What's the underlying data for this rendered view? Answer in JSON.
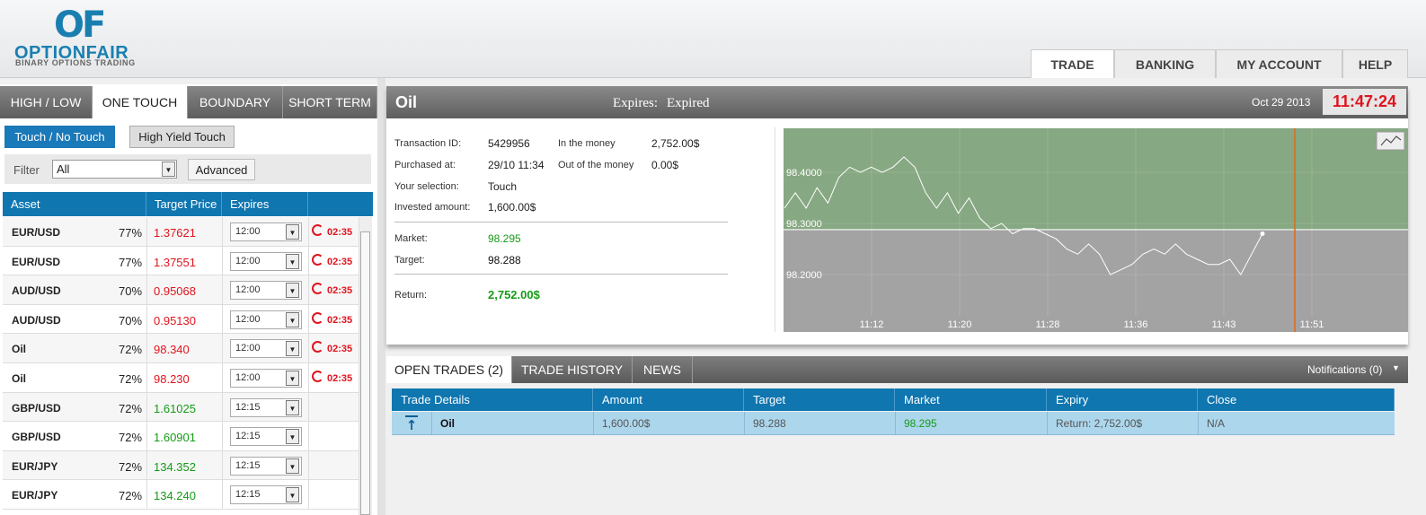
{
  "logo": {
    "mark": "OF",
    "name": "OPTIONFAIR",
    "tagline": "BINARY OPTIONS TRADING"
  },
  "nav": [
    "TRADE",
    "BANKING",
    "MY ACCOUNT",
    "HELP"
  ],
  "option_tabs": [
    "HIGH / LOW",
    "ONE TOUCH",
    "BOUNDARY",
    "SHORT TERM"
  ],
  "sub_tabs": [
    "Touch / No Touch",
    "High Yield Touch"
  ],
  "filter": {
    "label": "Filter",
    "value": "All",
    "button": "Advanced"
  },
  "asset_table": {
    "columns": [
      "Asset",
      "Target Price",
      "Expires"
    ],
    "rows": [
      {
        "asset": "EUR/USD",
        "payout": "77%",
        "target": "1.37621",
        "expires": "12:00",
        "countdown": "02:35",
        "color": "#e0141e"
      },
      {
        "asset": "EUR/USD",
        "payout": "77%",
        "target": "1.37551",
        "expires": "12:00",
        "countdown": "02:35",
        "color": "#e0141e"
      },
      {
        "asset": "AUD/USD",
        "payout": "70%",
        "target": "0.95068",
        "expires": "12:00",
        "countdown": "02:35",
        "color": "#e0141e"
      },
      {
        "asset": "AUD/USD",
        "payout": "70%",
        "target": "0.95130",
        "expires": "12:00",
        "countdown": "02:35",
        "color": "#e0141e"
      },
      {
        "asset": "Oil",
        "payout": "72%",
        "target": "98.340",
        "expires": "12:00",
        "countdown": "02:35",
        "color": "#e0141e"
      },
      {
        "asset": "Oil",
        "payout": "72%",
        "target": "98.230",
        "expires": "12:00",
        "countdown": "02:35",
        "color": "#e0141e"
      },
      {
        "asset": "GBP/USD",
        "payout": "72%",
        "target": "1.61025",
        "expires": "12:15",
        "color": "#169b16"
      },
      {
        "asset": "GBP/USD",
        "payout": "72%",
        "target": "1.60901",
        "expires": "12:15",
        "color": "#169b16"
      },
      {
        "asset": "EUR/JPY",
        "payout": "72%",
        "target": "134.352",
        "expires": "12:15",
        "color": "#169b16"
      },
      {
        "asset": "EUR/JPY",
        "payout": "72%",
        "target": "134.240",
        "expires": "12:15",
        "color": "#169b16"
      }
    ]
  },
  "trade_panel": {
    "asset": "Oil",
    "expires_label": "Expires:",
    "expires_value": "Expired",
    "date": "Oct 29 2013",
    "time": "11:47:24",
    "summary": [
      {
        "label": "Transaction ID:",
        "value": "5429956"
      },
      {
        "label": "Purchased at:",
        "value": "29/10 11:34"
      },
      {
        "label": "Your selection:",
        "value": "Touch"
      },
      {
        "label": "Invested amount:",
        "value": "1,600.00$"
      }
    ],
    "outcomes": [
      {
        "label": "In the money",
        "value": "2,752.00$"
      },
      {
        "label": "Out of the money",
        "value": "0.00$"
      }
    ],
    "prices": [
      {
        "label": "Market:",
        "value": "98.295",
        "color": "#169b16"
      },
      {
        "label": "Target:",
        "value": "98.288",
        "color": "#111111"
      }
    ],
    "return": {
      "label": "Return:",
      "value": "2,752.00$",
      "color": "#169b16"
    }
  },
  "price_chart": {
    "type": "line",
    "color": "#ffffff",
    "target_line": 98.288,
    "xticks": [
      "11:12",
      "11:20",
      "11:28",
      "11:36",
      "11:43",
      "11:51"
    ],
    "values": [
      98.33,
      98.36,
      98.33,
      98.37,
      98.34,
      98.39,
      98.41,
      98.4,
      98.41,
      98.4,
      98.41,
      98.43,
      98.41,
      98.36,
      98.33,
      98.36,
      98.32,
      98.35,
      98.31,
      98.29,
      98.3,
      98.28,
      98.29,
      98.29,
      98.28,
      98.27,
      98.25,
      98.24,
      98.26,
      98.24,
      98.2,
      98.21,
      98.22,
      98.24,
      98.25,
      98.24,
      98.26,
      98.24,
      98.23,
      98.22,
      98.22,
      98.23,
      98.2,
      98.24,
      98.28
    ],
    "ylim": [
      98.088,
      98.486
    ],
    "yticks": [
      {
        "value": 98.4,
        "label": "98.4000"
      },
      {
        "value": 98.3,
        "label": "98.3000"
      },
      {
        "value": 98.2,
        "label": "98.2000"
      }
    ],
    "above_color": "#86a882",
    "below_color": "#a3a3a3"
  },
  "bottom_tabs": [
    "OPEN TRADES (2)",
    "TRADE HISTORY",
    "NEWS"
  ],
  "notifications": "Notifications (0)",
  "open_trades": {
    "columns": [
      "Trade Details",
      "Amount",
      "Target",
      "Market",
      "Expiry",
      "Close"
    ],
    "rows": [
      [
        "Oil",
        "1,600.00$",
        "98.288",
        "98.295",
        "Return: 2,752.00$",
        "N/A"
      ]
    ]
  }
}
